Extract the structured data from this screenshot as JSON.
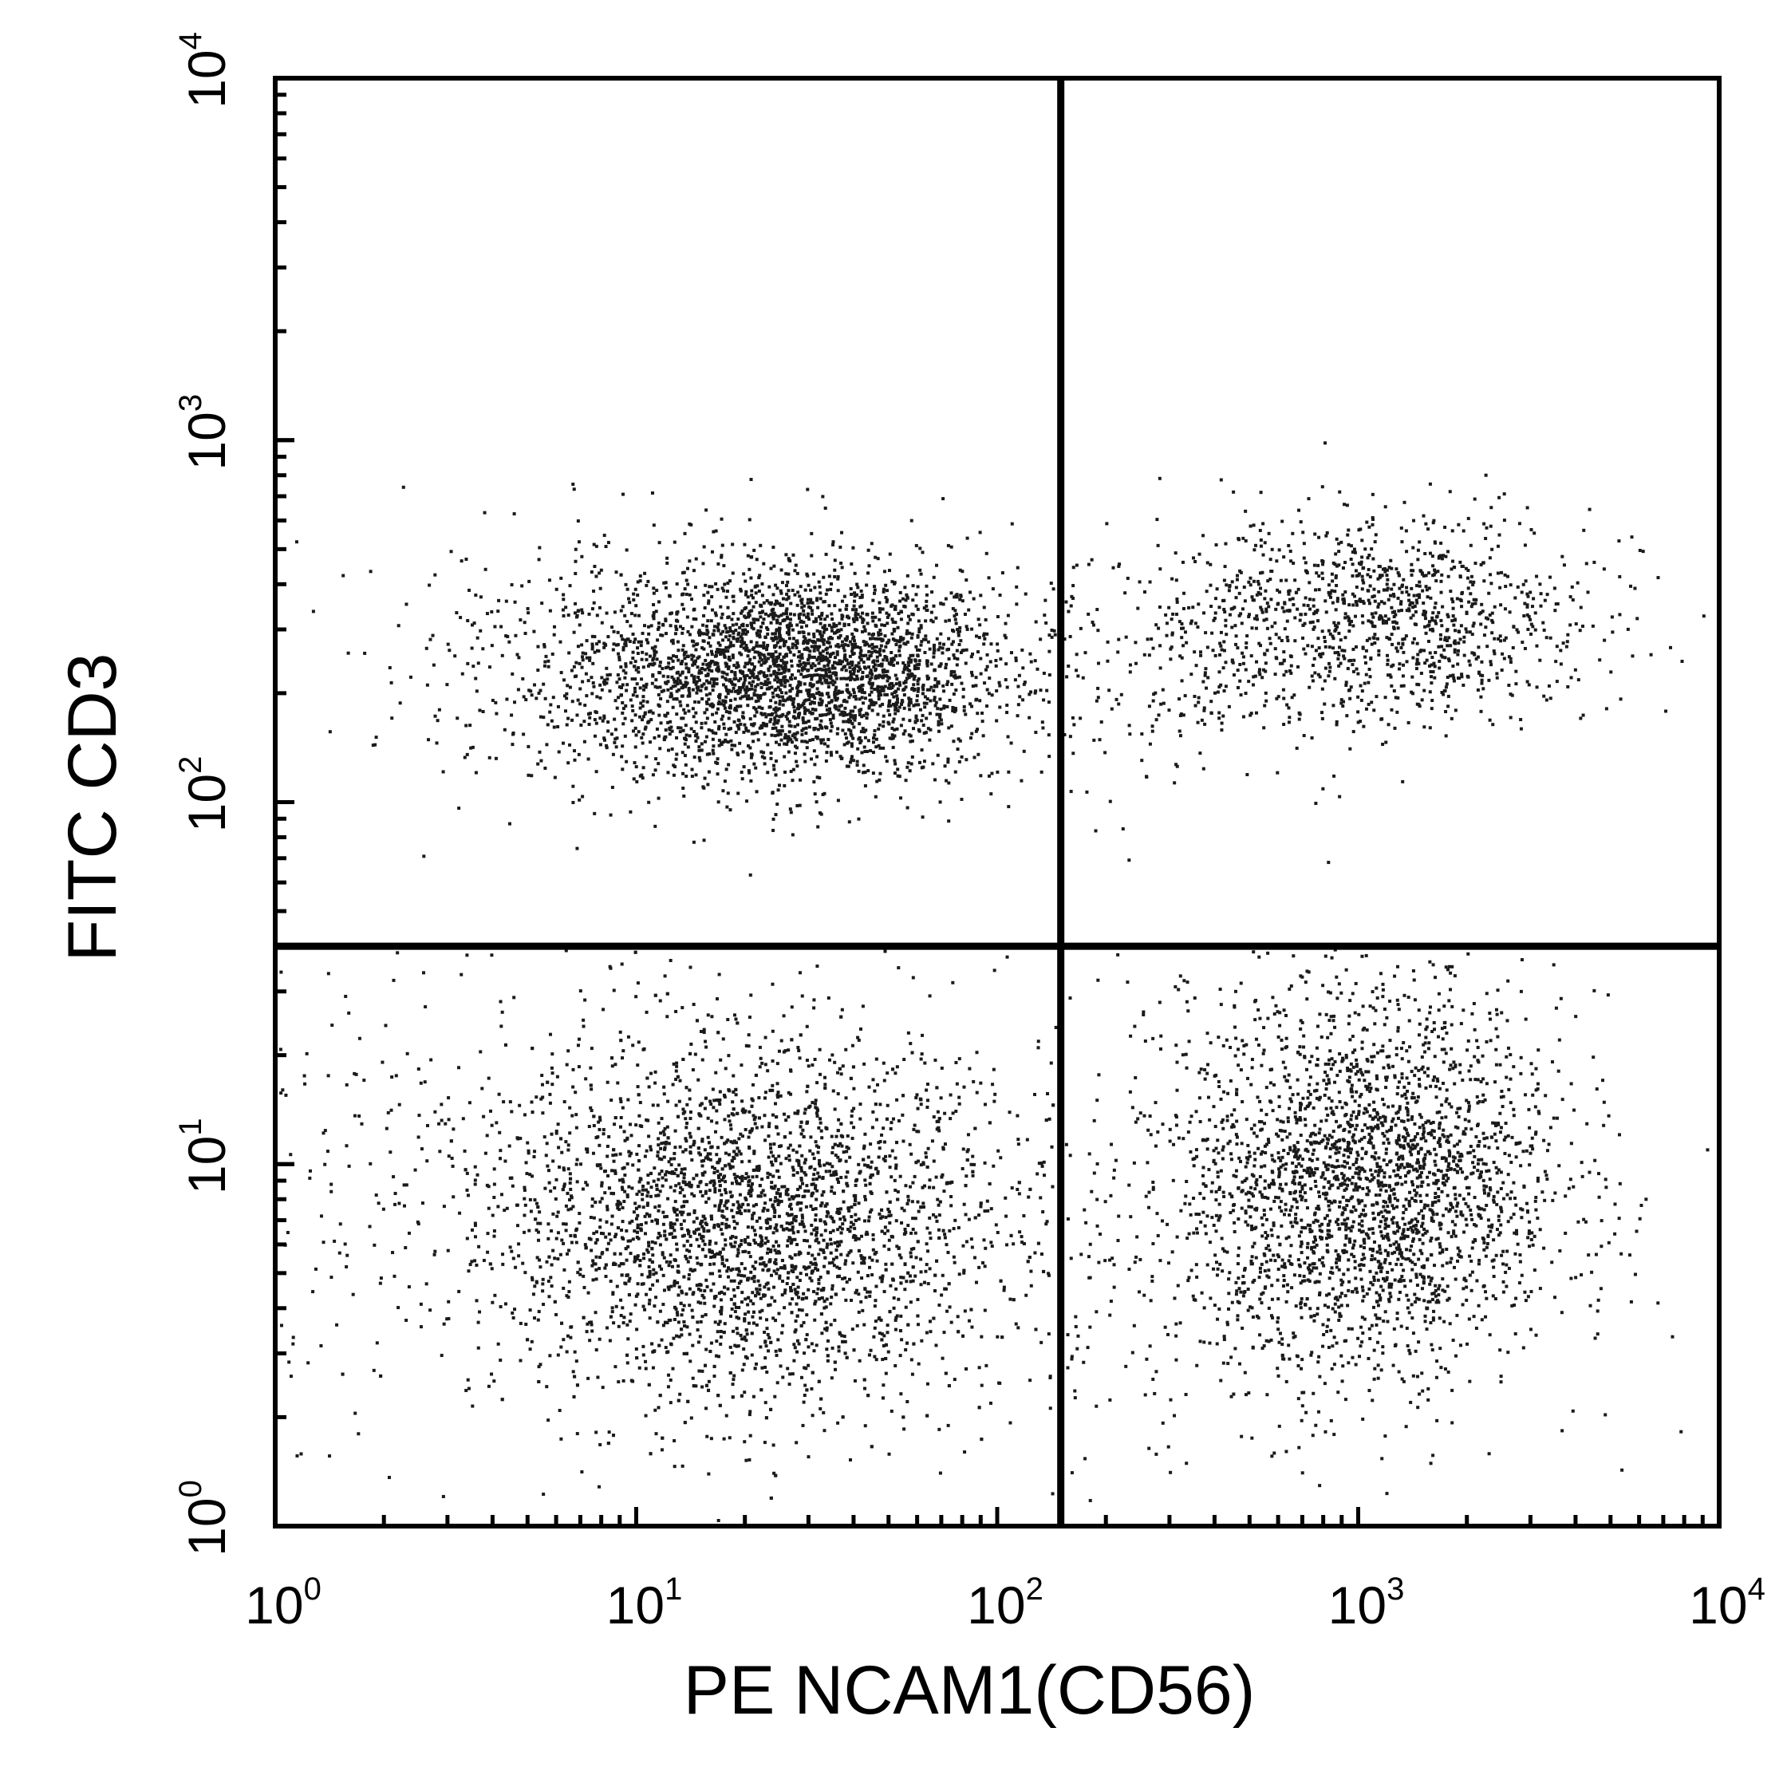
{
  "chart_data": {
    "type": "scatter",
    "title": "",
    "xlabel": "PE NCAM1(CD56)",
    "ylabel": "FITC CD3",
    "x_scale": "log",
    "y_scale": "log",
    "xlim": [
      1,
      10000
    ],
    "ylim": [
      1,
      10000
    ],
    "x_ticks": [
      {
        "value": 1,
        "base": "10",
        "exp": "0"
      },
      {
        "value": 10,
        "base": "10",
        "exp": "1"
      },
      {
        "value": 100,
        "base": "10",
        "exp": "2"
      },
      {
        "value": 1000,
        "base": "10",
        "exp": "3"
      },
      {
        "value": 10000,
        "base": "10",
        "exp": "4"
      }
    ],
    "y_ticks": [
      {
        "value": 1,
        "base": "10",
        "exp": "0"
      },
      {
        "value": 10,
        "base": "10",
        "exp": "1"
      },
      {
        "value": 100,
        "base": "10",
        "exp": "2"
      },
      {
        "value": 1000,
        "base": "10",
        "exp": "3"
      },
      {
        "value": 10000,
        "base": "10",
        "exp": "4"
      }
    ],
    "quadrant_gates": {
      "x": 150,
      "y": 40
    },
    "grid": false,
    "point_color": "#1a1a1a",
    "populations": [
      {
        "quadrant": "upper-left",
        "center": [
          30,
          230
        ],
        "spread_log": [
          0.28,
          0.14
        ],
        "count": 2600
      },
      {
        "quadrant": "upper-left",
        "center": [
          12,
          230
        ],
        "spread_log": [
          0.35,
          0.18
        ],
        "count": 700
      },
      {
        "quadrant": "upper-right",
        "center": [
          1200,
          320
        ],
        "spread_log": [
          0.28,
          0.14
        ],
        "count": 1100
      },
      {
        "quadrant": "upper-right",
        "center": [
          400,
          250
        ],
        "spread_log": [
          0.3,
          0.2
        ],
        "count": 250
      },
      {
        "quadrant": "lower-left",
        "center": [
          22,
          7
        ],
        "spread_log": [
          0.34,
          0.25
        ],
        "count": 3200
      },
      {
        "quadrant": "lower-left",
        "center": [
          4,
          8
        ],
        "spread_log": [
          0.4,
          0.3
        ],
        "count": 400
      },
      {
        "quadrant": "lower-right",
        "center": [
          1100,
          9
        ],
        "spread_log": [
          0.26,
          0.25
        ],
        "count": 2400
      },
      {
        "quadrant": "lower-right",
        "center": [
          600,
          6
        ],
        "spread_log": [
          0.35,
          0.3
        ],
        "count": 400
      }
    ]
  }
}
